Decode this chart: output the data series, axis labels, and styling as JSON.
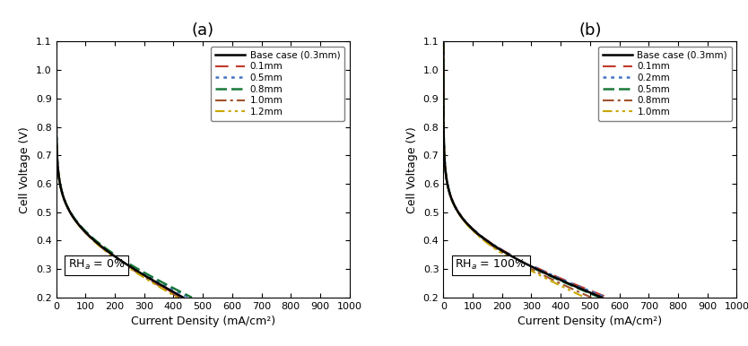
{
  "panel_a": {
    "title": "(a)",
    "rh_label": "RH$_a$ = 0%",
    "xlabel": "Current Density (mA/cm²)",
    "ylabel": "Cell Voltage (V)",
    "xlim": [
      0,
      1000
    ],
    "ylim": [
      0.2,
      1.1
    ],
    "xticks": [
      0,
      100,
      200,
      300,
      400,
      500,
      600,
      700,
      800,
      900,
      1000
    ],
    "yticks": [
      0.2,
      0.3,
      0.4,
      0.5,
      0.6,
      0.7,
      0.8,
      0.9,
      1.0,
      1.1
    ],
    "curves": [
      {
        "label": "Base case (0.3mm)",
        "color": "#000000",
        "linestyle": "solid",
        "linewidth": 1.8,
        "ilim": 660,
        "E0": 1.0,
        "b": 0.068,
        "i0": 0.04,
        "R": 0.00038,
        "m": 5e-06,
        "n": 10.0
      },
      {
        "label": "0.1mm",
        "color": "#c0392b",
        "linestyle": "dashed",
        "linewidth": 1.5,
        "ilim": 550,
        "E0": 1.0,
        "b": 0.068,
        "i0": 0.04,
        "R": 0.00038,
        "m": 5e-06,
        "n": 10.0
      },
      {
        "label": "0.5mm",
        "color": "#4472c4",
        "linestyle": "dotted",
        "linewidth": 1.8,
        "ilim": 760,
        "E0": 1.0,
        "b": 0.068,
        "i0": 0.04,
        "R": 0.00036,
        "m": 5e-06,
        "n": 10.0
      },
      {
        "label": "0.8mm",
        "color": "#1a7a3a",
        "linestyle": "dashed2",
        "linewidth": 1.8,
        "ilim": 790,
        "E0": 1.0,
        "b": 0.068,
        "i0": 0.04,
        "R": 0.00035,
        "m": 5e-06,
        "n": 10.0
      },
      {
        "label": "1.0mm",
        "color": "#a0522d",
        "linestyle": "dashdot",
        "linewidth": 1.5,
        "ilim": 690,
        "E0": 1.0,
        "b": 0.068,
        "i0": 0.04,
        "R": 0.0004,
        "m": 5e-06,
        "n": 10.0
      },
      {
        "label": "1.2mm",
        "color": "#c8a800",
        "linestyle": "dashdot2",
        "linewidth": 1.5,
        "ilim": 675,
        "E0": 1.0,
        "b": 0.068,
        "i0": 0.04,
        "R": 0.00041,
        "m": 5e-06,
        "n": 10.0
      }
    ]
  },
  "panel_b": {
    "title": "(b)",
    "rh_label": "RH$_a$ = 100%",
    "xlabel": "Current Density (mA/cm²)",
    "ylabel": "Cell Voltage (V)",
    "xlim": [
      0,
      1000
    ],
    "ylim": [
      0.2,
      1.1
    ],
    "xticks": [
      0,
      100,
      200,
      300,
      400,
      500,
      600,
      700,
      800,
      900,
      1000
    ],
    "yticks": [
      0.2,
      0.3,
      0.4,
      0.5,
      0.6,
      0.7,
      0.8,
      0.9,
      1.0,
      1.1
    ],
    "curves": [
      {
        "label": "Base case (0.3mm)",
        "color": "#000000",
        "linestyle": "solid",
        "linewidth": 1.8,
        "ilim": 925,
        "E0": 1.0,
        "b": 0.068,
        "i0": 0.04,
        "R": 0.00028,
        "m": 5e-06,
        "n": 10.0
      },
      {
        "label": "0.1mm",
        "color": "#c0392b",
        "linestyle": "dashed",
        "linewidth": 1.5,
        "ilim": 950,
        "E0": 1.0,
        "b": 0.068,
        "i0": 0.04,
        "R": 0.000265,
        "m": 5e-06,
        "n": 10.0
      },
      {
        "label": "0.2mm",
        "color": "#4472c4",
        "linestyle": "dotted",
        "linewidth": 1.8,
        "ilim": 940,
        "E0": 1.0,
        "b": 0.068,
        "i0": 0.04,
        "R": 0.00027,
        "m": 5e-06,
        "n": 10.0
      },
      {
        "label": "0.5mm",
        "color": "#1a7a3a",
        "linestyle": "dashed2",
        "linewidth": 1.8,
        "ilim": 915,
        "E0": 1.0,
        "b": 0.068,
        "i0": 0.04,
        "R": 0.000285,
        "m": 5e-06,
        "n": 10.0
      },
      {
        "label": "0.8mm",
        "color": "#a0522d",
        "linestyle": "dashdot",
        "linewidth": 1.5,
        "ilim": 870,
        "E0": 1.0,
        "b": 0.068,
        "i0": 0.04,
        "R": 0.00031,
        "m": 5e-06,
        "n": 10.0
      },
      {
        "label": "1.0mm",
        "color": "#c8a800",
        "linestyle": "dashdot2",
        "linewidth": 1.5,
        "ilim": 840,
        "E0": 1.0,
        "b": 0.068,
        "i0": 0.04,
        "R": 0.00033,
        "m": 5e-06,
        "n": 10.0
      }
    ]
  }
}
